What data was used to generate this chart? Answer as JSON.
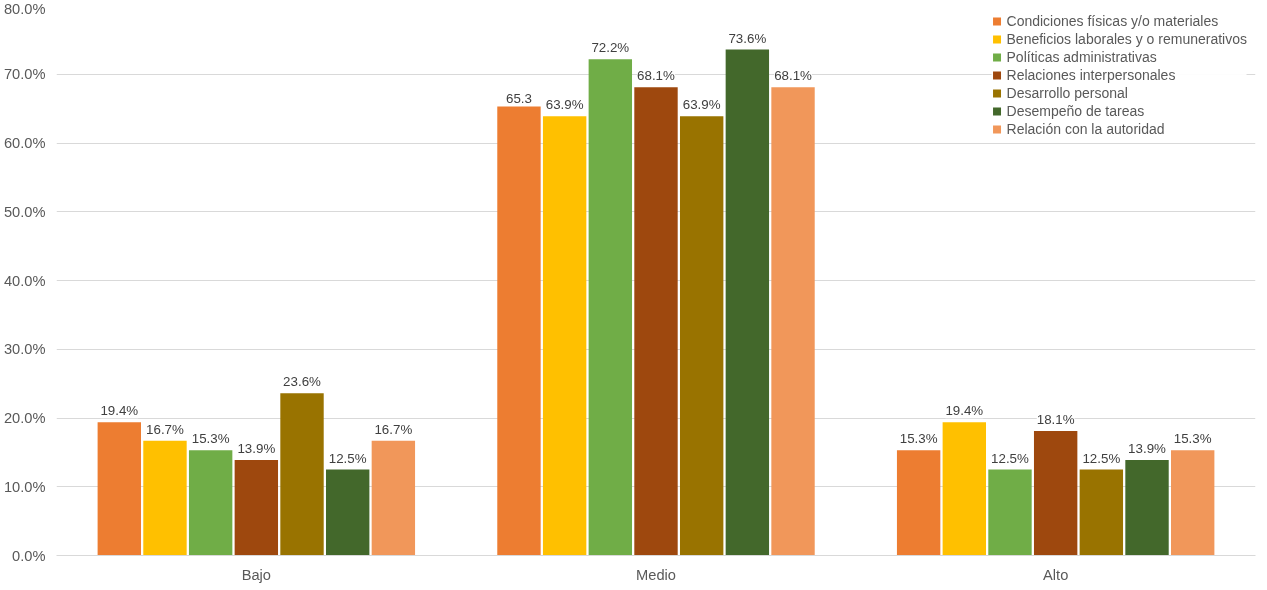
{
  "chart_data": {
    "type": "bar",
    "categories": [
      "Bajo",
      "Medio",
      "Alto"
    ],
    "series": [
      {
        "name": "Condiciones físicas y/o materiales",
        "color": "#ed7d31",
        "values": [
          19.4,
          65.3,
          15.3
        ],
        "value_labels": [
          "19.4%",
          "65.3",
          "15.3%"
        ]
      },
      {
        "name": "Beneficios laborales y o remunerativos",
        "color": "#ffc000",
        "values": [
          16.7,
          63.9,
          19.4
        ],
        "value_labels": [
          "16.7%",
          "63.9%",
          "19.4%"
        ]
      },
      {
        "name": "Políticas administrativas",
        "color": "#70ad47",
        "values": [
          15.3,
          72.2,
          12.5
        ],
        "value_labels": [
          "15.3%",
          "72.2%",
          "12.5%"
        ]
      },
      {
        "name": "Relaciones interpersonales",
        "color": "#9e480e",
        "values": [
          13.9,
          68.1,
          18.1
        ],
        "value_labels": [
          "13.9%",
          "68.1%",
          "18.1%"
        ]
      },
      {
        "name": "Desarrollo personal",
        "color": "#997300",
        "values": [
          23.6,
          63.9,
          12.5
        ],
        "value_labels": [
          "23.6%",
          "63.9%",
          "12.5%"
        ]
      },
      {
        "name": "Desempeño de tareas",
        "color": "#43682b",
        "values": [
          12.5,
          73.6,
          13.9
        ],
        "value_labels": [
          "12.5%",
          "73.6%",
          "13.9%"
        ]
      },
      {
        "name": "Relación con la autoridad",
        "color": "#f1975a",
        "values": [
          16.7,
          68.1,
          15.3
        ],
        "value_labels": [
          "16.7%",
          "68.1%",
          "15.3%"
        ]
      }
    ],
    "ylim": [
      0,
      80
    ],
    "yticks": [
      {
        "value": 0,
        "label": "0.0%"
      },
      {
        "value": 10,
        "label": "10.0%"
      },
      {
        "value": 20,
        "label": "20.0%"
      },
      {
        "value": 30,
        "label": "30.0%"
      },
      {
        "value": 40,
        "label": "40.0%"
      },
      {
        "value": 50,
        "label": "50.0%"
      },
      {
        "value": 60,
        "label": "60.0%"
      },
      {
        "value": 70,
        "label": "70.0%"
      },
      {
        "value": 80,
        "label": "80.0%"
      }
    ],
    "grid": "y",
    "legend": "top right"
  }
}
